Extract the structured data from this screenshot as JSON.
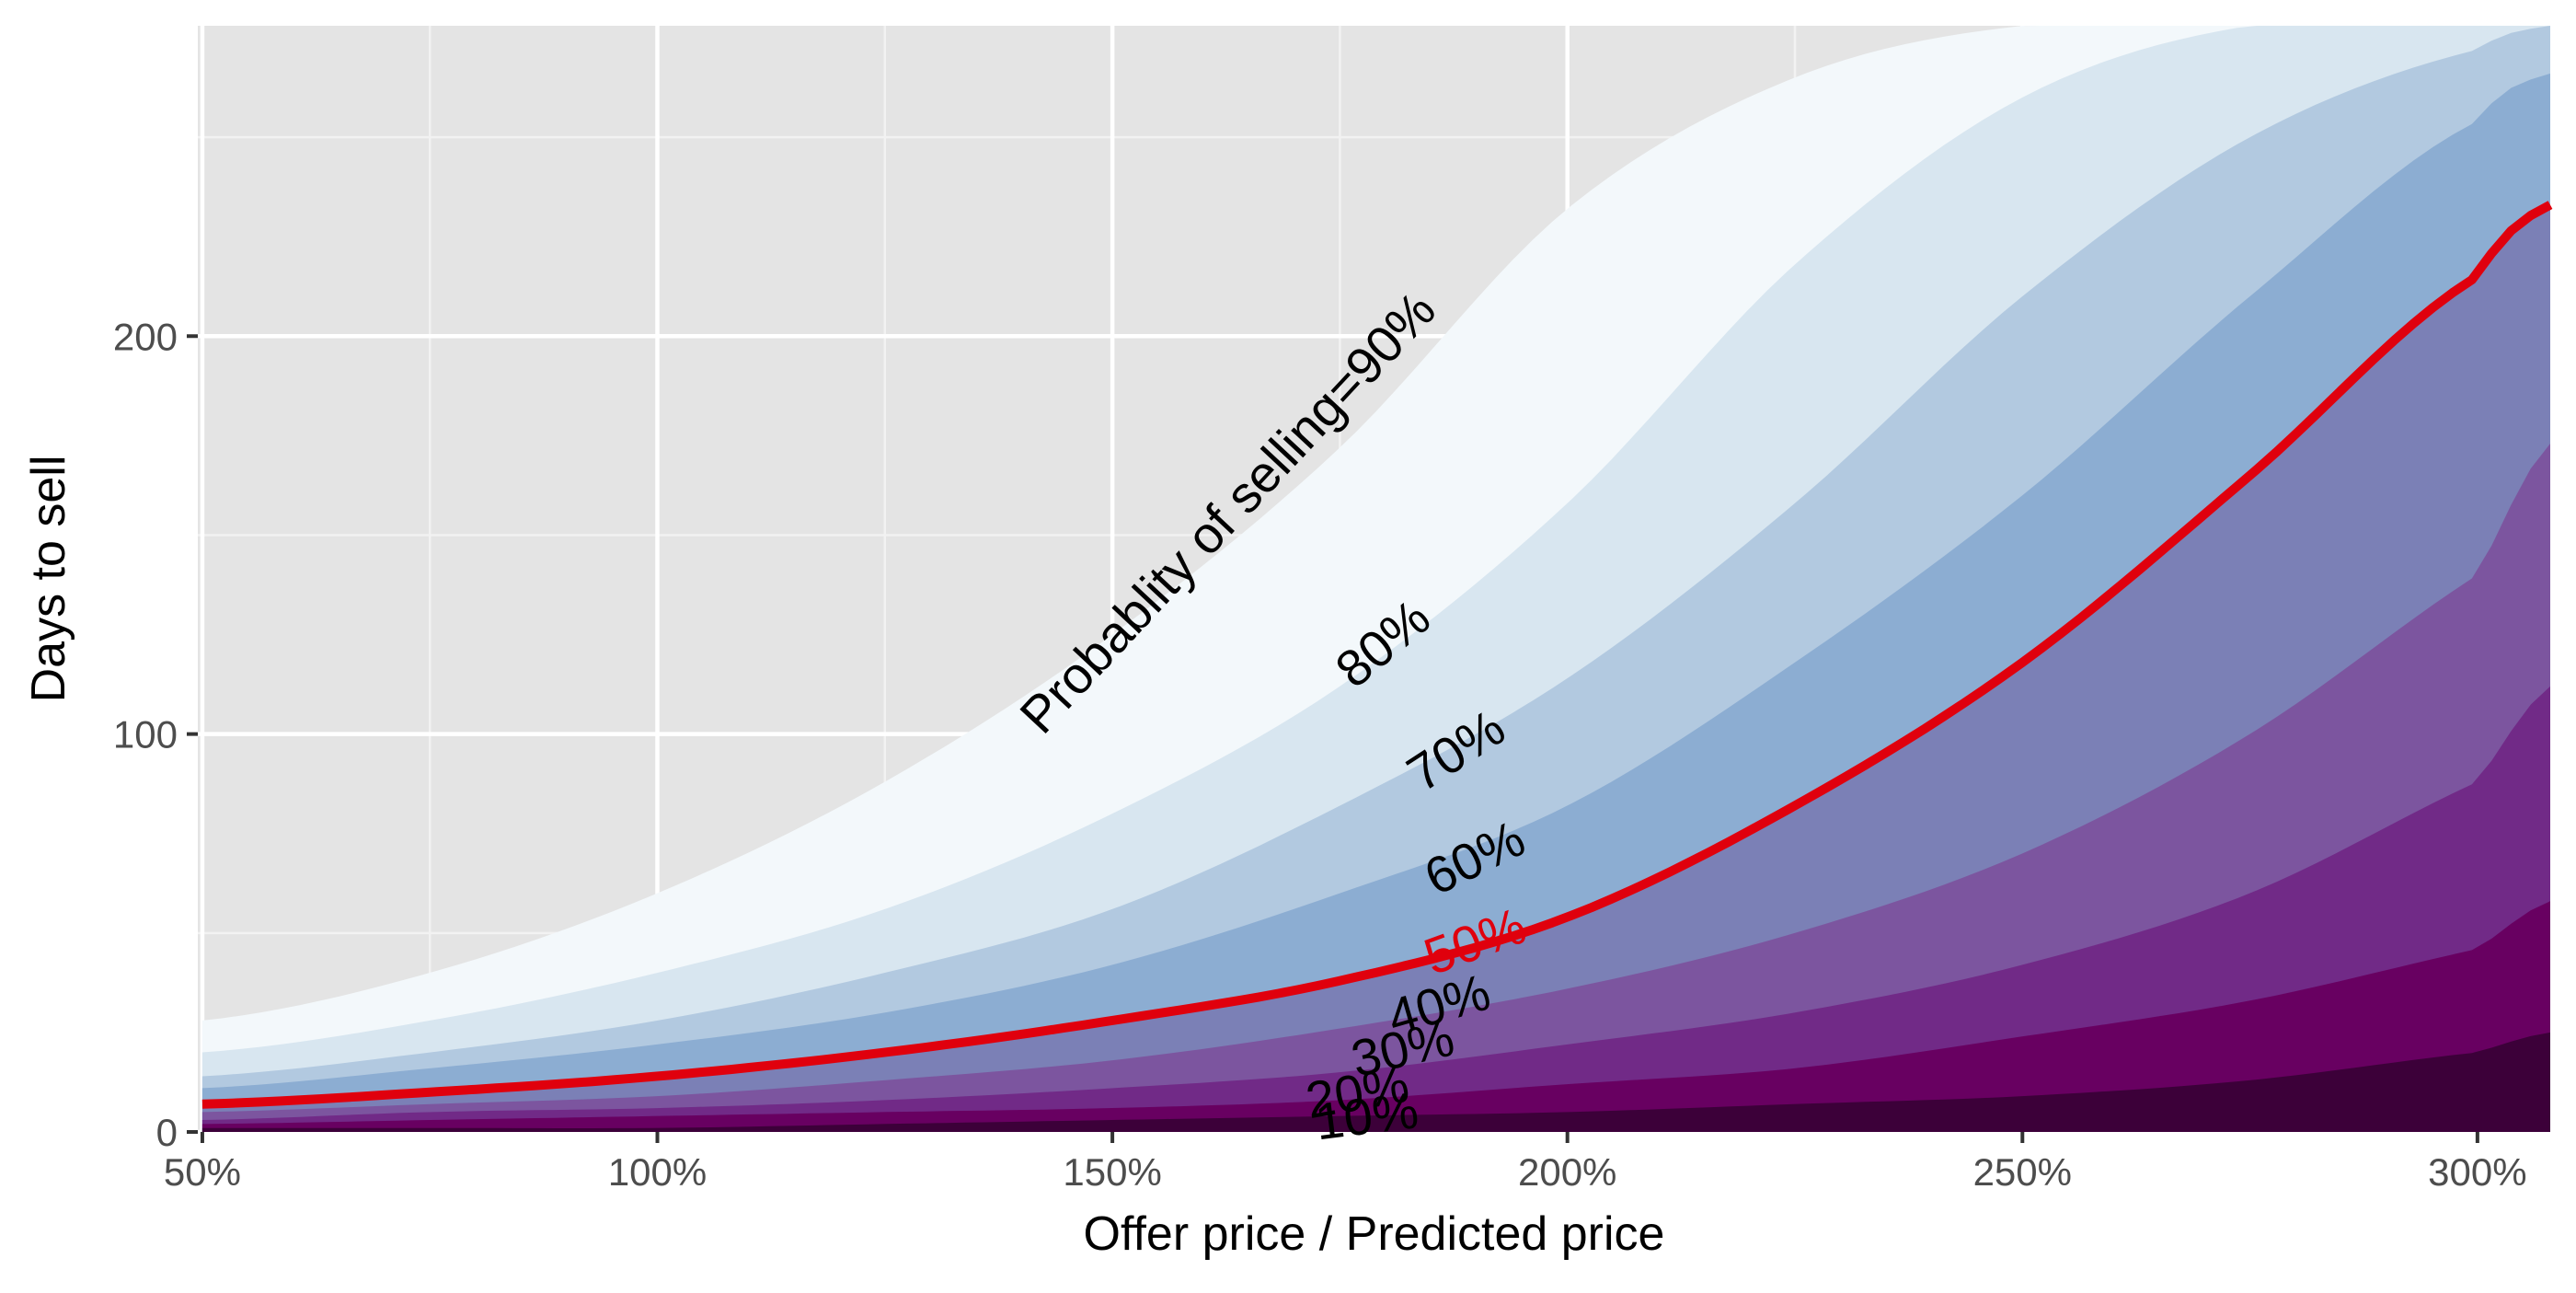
{
  "chart_data": {
    "type": "area",
    "xlabel": "Offer price / Predicted price",
    "ylabel": "Days to sell",
    "xlim": [
      49.5,
      308
    ],
    "ylim": [
      0,
      278
    ],
    "x_ticks": [
      50,
      100,
      150,
      200,
      250,
      300
    ],
    "x_tick_labels": [
      "50%",
      "100%",
      "150%",
      "200%",
      "250%",
      "300%"
    ],
    "y_ticks": [
      0,
      100,
      200
    ],
    "y_tick_labels": [
      "0",
      "100",
      "200"
    ],
    "grid": true,
    "panel_background": "#e4e4e4",
    "x": [
      50,
      75,
      100,
      125,
      150,
      175,
      200,
      225,
      250,
      275,
      300,
      308
    ],
    "series": [
      {
        "name": "90%",
        "label": "Probablity of selling=90%",
        "color": "#f3f8fb",
        "values": [
          28,
          40,
          60,
          88,
          125,
          172,
          232,
          265,
          278,
          278,
          278,
          278
        ]
      },
      {
        "name": "80%",
        "label": "80%",
        "color": "#d8e6f0",
        "values": [
          20,
          28,
          40,
          56,
          80,
          112,
          158,
          218,
          260,
          278,
          278,
          278
        ]
      },
      {
        "name": "70%",
        "label": "70%",
        "color": "#b2c9e0",
        "values": [
          14,
          20,
          28,
          40,
          56,
          82,
          114,
          158,
          210,
          250,
          272,
          278
        ]
      },
      {
        "name": "60%",
        "label": "60%",
        "color": "#8cadd2",
        "values": [
          11,
          16,
          22,
          30,
          42,
          60,
          82,
          118,
          160,
          210,
          254,
          266
        ]
      },
      {
        "name": "50%",
        "label": "50%",
        "color": "#7b80b6",
        "line_color": "#e0000d",
        "values": [
          7,
          10,
          14,
          20,
          28,
          38,
          54,
          82,
          118,
          165,
          215,
          233
        ]
      },
      {
        "name": "40%",
        "label": "40%",
        "color": "#7c559f",
        "values": [
          5,
          7,
          9,
          13,
          18,
          26,
          36,
          50,
          70,
          100,
          140,
          173
        ]
      },
      {
        "name": "30%",
        "label": "30%",
        "color": "#712a87",
        "values": [
          3,
          5,
          6,
          8,
          11,
          15,
          22,
          30,
          42,
          60,
          88,
          112
        ]
      },
      {
        "name": "20%",
        "label": "20%",
        "color": "#680061",
        "values": [
          2,
          3,
          4,
          5,
          6,
          8,
          12,
          16,
          24,
          33,
          46,
          58
        ]
      },
      {
        "name": "10%",
        "label": "10%",
        "color": "#3c0039",
        "values": [
          1,
          1,
          1,
          2,
          3,
          4,
          5,
          7,
          9,
          13,
          20,
          25
        ]
      }
    ],
    "annotations": [
      {
        "series": "90%",
        "text": "Probablity of selling=90%",
        "x": 163,
        "y": 155,
        "angle": -47,
        "color": "#000000"
      },
      {
        "series": "80%",
        "text": "80%",
        "x": 180,
        "y": 122,
        "angle": -40,
        "color": "#000000"
      },
      {
        "series": "70%",
        "text": "70%",
        "x": 188,
        "y": 95,
        "angle": -33,
        "color": "#000000"
      },
      {
        "series": "60%",
        "text": "60%",
        "x": 190,
        "y": 68,
        "angle": -26,
        "color": "#000000"
      },
      {
        "series": "50%",
        "text": "50%",
        "x": 190,
        "y": 47,
        "angle": -20,
        "color": "#e0000d"
      },
      {
        "series": "40%",
        "text": "40%",
        "x": 186,
        "y": 31,
        "angle": -16,
        "color": "#000000"
      },
      {
        "series": "30%",
        "text": "30%",
        "x": 182,
        "y": 20,
        "angle": -13,
        "color": "#000000"
      },
      {
        "series": "20%",
        "text": "20%",
        "x": 177,
        "y": 9,
        "angle": -10,
        "color": "#000000"
      },
      {
        "series": "10%",
        "text": "10%",
        "x": 178,
        "y": 3,
        "angle": -7,
        "color": "#000000"
      }
    ]
  }
}
